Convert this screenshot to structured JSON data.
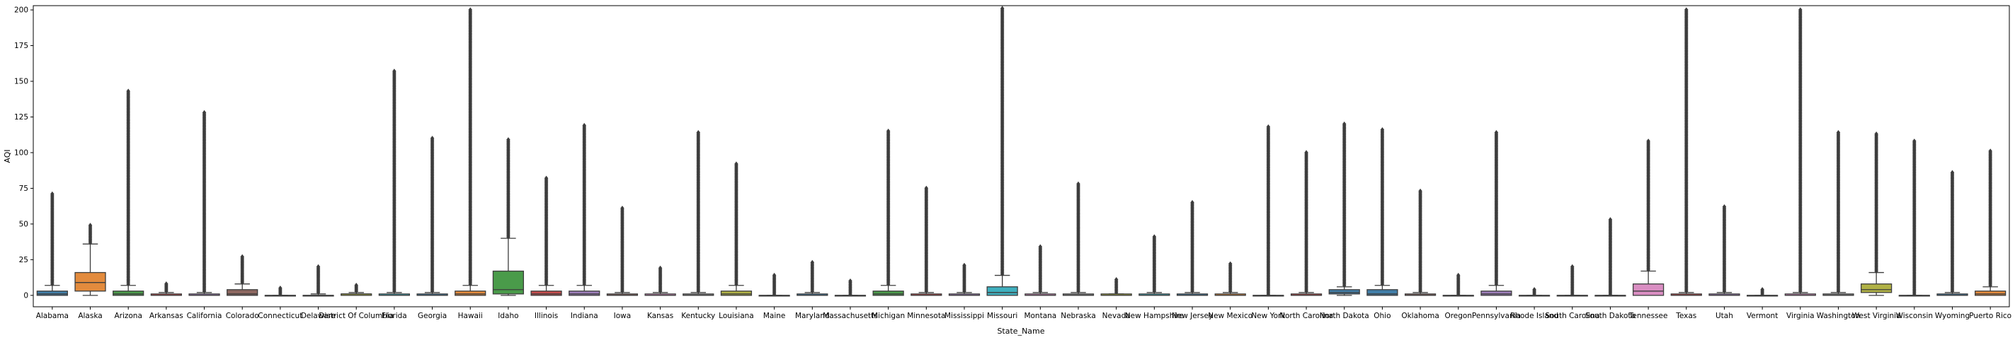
{
  "chart_data": {
    "type": "box",
    "title": "",
    "xlabel": "State_Name",
    "ylabel": "AQI",
    "ylim": [
      -8,
      203
    ],
    "yticks": [
      0,
      25,
      50,
      75,
      100,
      125,
      150,
      175,
      200
    ],
    "grid": false,
    "legend": "none",
    "categories": [
      "Alabama",
      "Alaska",
      "Arizona",
      "Arkansas",
      "California",
      "Colorado",
      "Connecticut",
      "Delaware",
      "District Of Columbia",
      "Florida",
      "Georgia",
      "Hawaii",
      "Idaho",
      "Illinois",
      "Indiana",
      "Iowa",
      "Kansas",
      "Kentucky",
      "Louisiana",
      "Maine",
      "Maryland",
      "Massachusetts",
      "Michigan",
      "Minnesota",
      "Mississippi",
      "Missouri",
      "Montana",
      "Nebraska",
      "Nevada",
      "New Hampshire",
      "New Jersey",
      "New Mexico",
      "New York",
      "North Carolina",
      "North Dakota",
      "Ohio",
      "Oklahoma",
      "Oregon",
      "Pennsylvania",
      "Rhode Island",
      "South Carolina",
      "South Dakota",
      "Tennessee",
      "Texas",
      "Utah",
      "Vermont",
      "Virginia",
      "Washington",
      "West Virginia",
      "Wisconsin",
      "Wyoming",
      "Puerto Rico"
    ],
    "boxes": [
      {
        "state": "Alabama",
        "color": "#3274a1",
        "q1": 0,
        "median": 1,
        "q3": 3,
        "whisker_low": 0,
        "whisker_high": 7,
        "outlier_top": 71
      },
      {
        "state": "Alaska",
        "color": "#e1812c",
        "q1": 3,
        "median": 9,
        "q3": 16,
        "whisker_low": 0,
        "whisker_high": 36,
        "outlier_top": 49
      },
      {
        "state": "Arizona",
        "color": "#3a923a",
        "q1": 0,
        "median": 1,
        "q3": 3,
        "whisker_low": 0,
        "whisker_high": 7,
        "outlier_top": 143
      },
      {
        "state": "Arkansas",
        "color": "#c03d3e",
        "q1": 0,
        "median": 0,
        "q3": 1,
        "whisker_low": 0,
        "whisker_high": 2,
        "outlier_top": 8
      },
      {
        "state": "California",
        "color": "#9372b2",
        "q1": 0,
        "median": 0,
        "q3": 1,
        "whisker_low": 0,
        "whisker_high": 2,
        "outlier_top": 128
      },
      {
        "state": "Colorado",
        "color": "#845b53",
        "q1": 0,
        "median": 1,
        "q3": 4,
        "whisker_low": 0,
        "whisker_high": 8,
        "outlier_top": 27
      },
      {
        "state": "Connecticut",
        "color": "#d684bd",
        "q1": 0,
        "median": 0,
        "q3": 0,
        "whisker_low": 0,
        "whisker_high": 0,
        "outlier_top": 5
      },
      {
        "state": "Delaware",
        "color": "#7f7f7f",
        "q1": 0,
        "median": 0,
        "q3": 0,
        "whisker_low": 0,
        "whisker_high": 1,
        "outlier_top": 20
      },
      {
        "state": "District Of Columbia",
        "color": "#a9aa35",
        "q1": 0,
        "median": 1,
        "q3": 1,
        "whisker_low": 0,
        "whisker_high": 2,
        "outlier_top": 7
      },
      {
        "state": "Florida",
        "color": "#2ea8b8",
        "q1": 0,
        "median": 0,
        "q3": 1,
        "whisker_low": 0,
        "whisker_high": 2,
        "outlier_top": 157
      },
      {
        "state": "Georgia",
        "color": "#3274a1",
        "q1": 0,
        "median": 0,
        "q3": 1,
        "whisker_low": 0,
        "whisker_high": 2,
        "outlier_top": 110
      },
      {
        "state": "Hawaii",
        "color": "#e1812c",
        "q1": 0,
        "median": 1,
        "q3": 3,
        "whisker_low": 0,
        "whisker_high": 7,
        "outlier_top": 200
      },
      {
        "state": "Idaho",
        "color": "#3a923a",
        "q1": 1,
        "median": 4,
        "q3": 17,
        "whisker_low": 0,
        "whisker_high": 40,
        "outlier_top": 109
      },
      {
        "state": "Illinois",
        "color": "#c03d3e",
        "q1": 0,
        "median": 1,
        "q3": 3,
        "whisker_low": 0,
        "whisker_high": 7,
        "outlier_top": 82
      },
      {
        "state": "Indiana",
        "color": "#9372b2",
        "q1": 0,
        "median": 1,
        "q3": 3,
        "whisker_low": 0,
        "whisker_high": 7,
        "outlier_top": 119
      },
      {
        "state": "Iowa",
        "color": "#845b53",
        "q1": 0,
        "median": 0,
        "q3": 1,
        "whisker_low": 0,
        "whisker_high": 2,
        "outlier_top": 61
      },
      {
        "state": "Kansas",
        "color": "#d684bd",
        "q1": 0,
        "median": 0,
        "q3": 1,
        "whisker_low": 0,
        "whisker_high": 2,
        "outlier_top": 19
      },
      {
        "state": "Kentucky",
        "color": "#7f7f7f",
        "q1": 0,
        "median": 0,
        "q3": 1,
        "whisker_low": 0,
        "whisker_high": 2,
        "outlier_top": 114
      },
      {
        "state": "Louisiana",
        "color": "#a9aa35",
        "q1": 0,
        "median": 1,
        "q3": 3,
        "whisker_low": 0,
        "whisker_high": 7,
        "outlier_top": 92
      },
      {
        "state": "Maine",
        "color": "#2ea8b8",
        "q1": 0,
        "median": 0,
        "q3": 0,
        "whisker_low": 0,
        "whisker_high": 0,
        "outlier_top": 14
      },
      {
        "state": "Maryland",
        "color": "#3274a1",
        "q1": 0,
        "median": 0,
        "q3": 1,
        "whisker_low": 0,
        "whisker_high": 2,
        "outlier_top": 23
      },
      {
        "state": "Massachusetts",
        "color": "#e1812c",
        "q1": 0,
        "median": 0,
        "q3": 0,
        "whisker_low": 0,
        "whisker_high": 0,
        "outlier_top": 10
      },
      {
        "state": "Michigan",
        "color": "#3a923a",
        "q1": 0,
        "median": 1,
        "q3": 3,
        "whisker_low": 0,
        "whisker_high": 7,
        "outlier_top": 115
      },
      {
        "state": "Minnesota",
        "color": "#c03d3e",
        "q1": 0,
        "median": 0,
        "q3": 1,
        "whisker_low": 0,
        "whisker_high": 2,
        "outlier_top": 75
      },
      {
        "state": "Mississippi",
        "color": "#9372b2",
        "q1": 0,
        "median": 0,
        "q3": 1,
        "whisker_low": 0,
        "whisker_high": 2,
        "outlier_top": 21
      },
      {
        "state": "Missouri",
        "color": "#2ea8b8",
        "q1": 0,
        "median": 2,
        "q3": 6,
        "whisker_low": 0,
        "whisker_high": 14,
        "outlier_top": 201
      },
      {
        "state": "Montana",
        "color": "#d684bd",
        "q1": 0,
        "median": 0,
        "q3": 1,
        "whisker_low": 0,
        "whisker_high": 2,
        "outlier_top": 34
      },
      {
        "state": "Nebraska",
        "color": "#7f7f7f",
        "q1": 0,
        "median": 0,
        "q3": 1,
        "whisker_low": 0,
        "whisker_high": 2,
        "outlier_top": 78
      },
      {
        "state": "Nevada",
        "color": "#a9aa35",
        "q1": 0,
        "median": 0,
        "q3": 1,
        "whisker_low": 0,
        "whisker_high": 1,
        "outlier_top": 11
      },
      {
        "state": "New Hampshire",
        "color": "#2ea8b8",
        "q1": 0,
        "median": 0,
        "q3": 1,
        "whisker_low": 0,
        "whisker_high": 2,
        "outlier_top": 41
      },
      {
        "state": "New Jersey",
        "color": "#3274a1",
        "q1": 0,
        "median": 0,
        "q3": 1,
        "whisker_low": 0,
        "whisker_high": 2,
        "outlier_top": 65
      },
      {
        "state": "New Mexico",
        "color": "#e1812c",
        "q1": 0,
        "median": 0,
        "q3": 1,
        "whisker_low": 0,
        "whisker_high": 2,
        "outlier_top": 22
      },
      {
        "state": "New York",
        "color": "#3a923a",
        "q1": 0,
        "median": 0,
        "q3": 0,
        "whisker_low": 0,
        "whisker_high": 0,
        "outlier_top": 118
      },
      {
        "state": "North Carolina",
        "color": "#c03d3e",
        "q1": 0,
        "median": 0,
        "q3": 1,
        "whisker_low": 0,
        "whisker_high": 2,
        "outlier_top": 100
      },
      {
        "state": "North Dakota",
        "color": "#3274a1",
        "q1": 1,
        "median": 2,
        "q3": 4,
        "whisker_low": 0,
        "whisker_high": 6,
        "outlier_top": 120
      },
      {
        "state": "Ohio",
        "color": "#3274a1",
        "q1": 0,
        "median": 1,
        "q3": 4,
        "whisker_low": 0,
        "whisker_high": 7,
        "outlier_top": 116
      },
      {
        "state": "Oklahoma",
        "color": "#845b53",
        "q1": 0,
        "median": 0,
        "q3": 1,
        "whisker_low": 0,
        "whisker_high": 2,
        "outlier_top": 73
      },
      {
        "state": "Oregon",
        "color": "#d684bd",
        "q1": 0,
        "median": 0,
        "q3": 0,
        "whisker_low": 0,
        "whisker_high": 0,
        "outlier_top": 14
      },
      {
        "state": "Pennsylvania",
        "color": "#9372b2",
        "q1": 0,
        "median": 1,
        "q3": 3,
        "whisker_low": 0,
        "whisker_high": 7,
        "outlier_top": 114
      },
      {
        "state": "Rhode Island",
        "color": "#a9aa35",
        "q1": 0,
        "median": 0,
        "q3": 0,
        "whisker_low": 0,
        "whisker_high": 0,
        "outlier_top": 4
      },
      {
        "state": "South Carolina",
        "color": "#2ea8b8",
        "q1": 0,
        "median": 0,
        "q3": 0,
        "whisker_low": 0,
        "whisker_high": 0,
        "outlier_top": 20
      },
      {
        "state": "South Dakota",
        "color": "#3274a1",
        "q1": 0,
        "median": 0,
        "q3": 0,
        "whisker_low": 0,
        "whisker_high": 0,
        "outlier_top": 53
      },
      {
        "state": "Tennessee",
        "color": "#d684bd",
        "q1": 0,
        "median": 3,
        "q3": 8,
        "whisker_low": 0,
        "whisker_high": 17,
        "outlier_top": 108
      },
      {
        "state": "Texas",
        "color": "#c03d3e",
        "q1": 0,
        "median": 0,
        "q3": 1,
        "whisker_low": 0,
        "whisker_high": 2,
        "outlier_top": 200
      },
      {
        "state": "Utah",
        "color": "#9372b2",
        "q1": 0,
        "median": 0,
        "q3": 1,
        "whisker_low": 0,
        "whisker_high": 2,
        "outlier_top": 62
      },
      {
        "state": "Vermont",
        "color": "#845b53",
        "q1": 0,
        "median": 0,
        "q3": 0,
        "whisker_low": 0,
        "whisker_high": 0,
        "outlier_top": 4
      },
      {
        "state": "Virginia",
        "color": "#d684bd",
        "q1": 0,
        "median": 0,
        "q3": 1,
        "whisker_low": 0,
        "whisker_high": 2,
        "outlier_top": 200
      },
      {
        "state": "Washington",
        "color": "#7f7f7f",
        "q1": 0,
        "median": 0,
        "q3": 1,
        "whisker_low": 0,
        "whisker_high": 2,
        "outlier_top": 114
      },
      {
        "state": "West Virginia",
        "color": "#a9aa35",
        "q1": 2,
        "median": 4,
        "q3": 8,
        "whisker_low": 0,
        "whisker_high": 16,
        "outlier_top": 113
      },
      {
        "state": "Wisconsin",
        "color": "#2ea8b8",
        "q1": 0,
        "median": 0,
        "q3": 0,
        "whisker_low": 0,
        "whisker_high": 0,
        "outlier_top": 108
      },
      {
        "state": "Wyoming",
        "color": "#3274a1",
        "q1": 0,
        "median": 0,
        "q3": 1,
        "whisker_low": 0,
        "whisker_high": 2,
        "outlier_top": 86
      },
      {
        "state": "Puerto Rico",
        "color": "#e1812c",
        "q1": 0,
        "median": 1,
        "q3": 3,
        "whisker_low": 0,
        "whisker_high": 6,
        "outlier_top": 101
      }
    ]
  }
}
